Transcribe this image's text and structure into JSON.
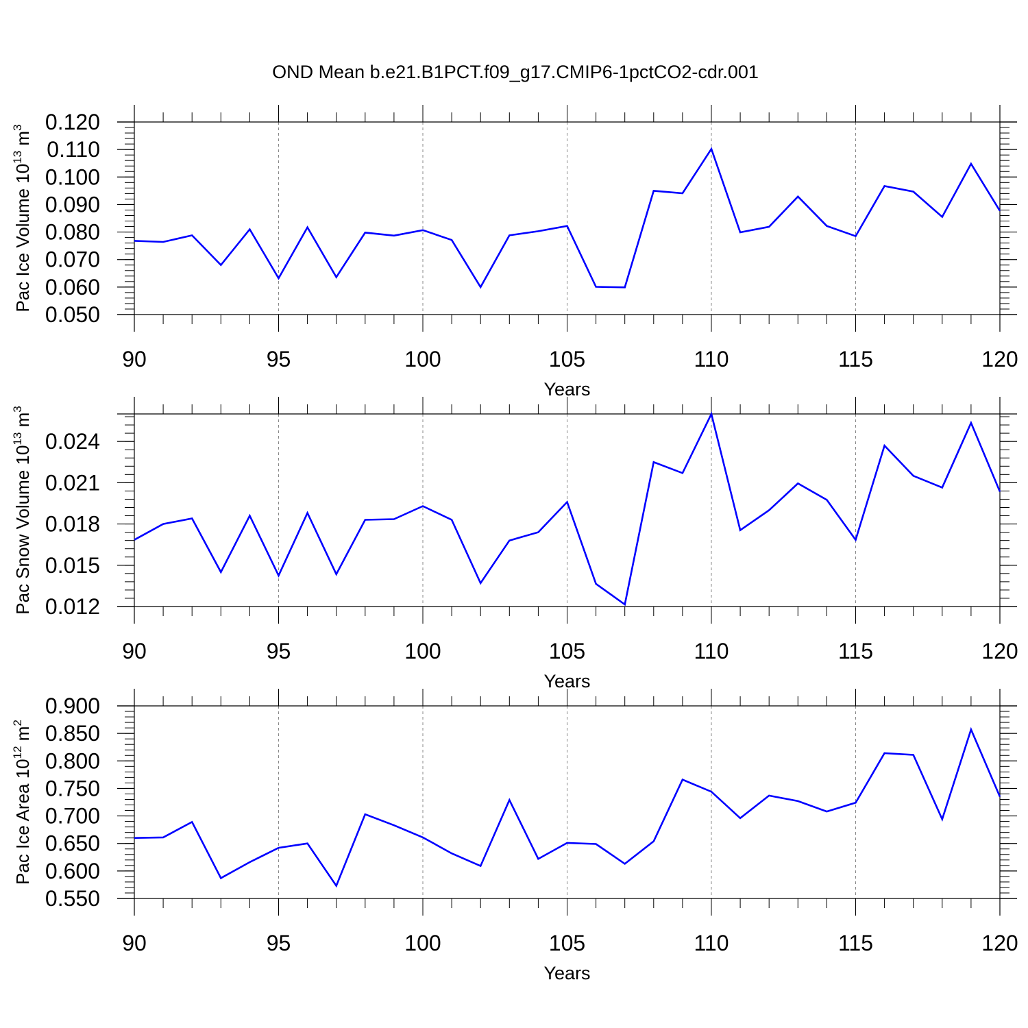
{
  "title": "OND Mean b.e21.B1PCT.f09_g17.CMIP6-1pctCO2-cdr.001",
  "colors": {
    "line": "#0000ff",
    "axis": "#000000",
    "grid": "#888888"
  },
  "chart_data": [
    {
      "type": "line",
      "ylabel": "Pac Ice Volume",
      "ylabel_unit": "10",
      "ylabel_exp": "13",
      "ylabel_unit_suffix": " m",
      "ylabel_unit_exp": "3",
      "xlabel": "Years",
      "xlim": [
        90,
        120
      ],
      "ylim": [
        0.05,
        0.12
      ],
      "x_ticks": [
        90,
        95,
        100,
        105,
        110,
        115,
        120
      ],
      "x_tick_labels": [
        "90",
        "95",
        "100",
        "105",
        "110",
        "115",
        "120"
      ],
      "y_ticks": [
        0.05,
        0.06,
        0.07,
        0.08,
        0.09,
        0.1,
        0.11,
        0.12
      ],
      "y_tick_labels": [
        "0.050",
        "0.060",
        "0.070",
        "0.080",
        "0.090",
        "0.100",
        "0.110",
        "0.120"
      ],
      "y_minor_step": 0.002,
      "grid_x": true,
      "series": [
        {
          "name": "Pac Ice Volume",
          "x": [
            90,
            91,
            92,
            93,
            94,
            95,
            96,
            97,
            98,
            99,
            100,
            101,
            102,
            103,
            104,
            105,
            106,
            107,
            108,
            109,
            110,
            111,
            112,
            113,
            114,
            115,
            116,
            117,
            118,
            119,
            120
          ],
          "values": [
            0.0768,
            0.0764,
            0.0788,
            0.068,
            0.081,
            0.0632,
            0.0817,
            0.0636,
            0.0798,
            0.0787,
            0.0807,
            0.0771,
            0.06,
            0.0788,
            0.0803,
            0.0822,
            0.0601,
            0.0599,
            0.095,
            0.0941,
            0.1102,
            0.0799,
            0.0819,
            0.0929,
            0.0822,
            0.0785,
            0.0967,
            0.0947,
            0.0855,
            0.1048,
            0.0877
          ]
        }
      ]
    },
    {
      "type": "line",
      "ylabel": "Pac Snow Volume",
      "ylabel_unit": "10",
      "ylabel_exp": "13",
      "ylabel_unit_suffix": " m",
      "ylabel_unit_exp": "3",
      "xlabel": "Years",
      "xlim": [
        90,
        120
      ],
      "ylim": [
        0.012,
        0.026
      ],
      "x_ticks": [
        90,
        95,
        100,
        105,
        110,
        115,
        120
      ],
      "x_tick_labels": [
        "90",
        "95",
        "100",
        "105",
        "110",
        "115",
        "120"
      ],
      "y_ticks": [
        0.012,
        0.015,
        0.018,
        0.021,
        0.024
      ],
      "y_tick_labels": [
        "0.012",
        "0.015",
        "0.018",
        "0.021",
        "0.024"
      ],
      "y_minor_step": 0.0006,
      "grid_x": true,
      "series": [
        {
          "name": "Pac Snow Volume",
          "x": [
            90,
            91,
            92,
            93,
            94,
            95,
            96,
            97,
            98,
            99,
            100,
            101,
            102,
            103,
            104,
            105,
            106,
            107,
            108,
            109,
            110,
            111,
            112,
            113,
            114,
            115,
            116,
            117,
            118,
            119,
            120
          ],
          "values": [
            0.01685,
            0.018,
            0.0184,
            0.0145,
            0.0186,
            0.01425,
            0.0188,
            0.01435,
            0.0183,
            0.01835,
            0.0193,
            0.0183,
            0.0137,
            0.0168,
            0.0174,
            0.0196,
            0.01365,
            0.01215,
            0.0225,
            0.0217,
            0.026,
            0.01755,
            0.019,
            0.02095,
            0.01975,
            0.01685,
            0.0237,
            0.0215,
            0.02065,
            0.02535,
            0.02035
          ]
        }
      ]
    },
    {
      "type": "line",
      "ylabel": "Pac Ice Area",
      "ylabel_unit": "10",
      "ylabel_exp": "12",
      "ylabel_unit_suffix": " m",
      "ylabel_unit_exp": "2",
      "xlabel": "Years",
      "xlim": [
        90,
        120
      ],
      "ylim": [
        0.55,
        0.9
      ],
      "x_ticks": [
        90,
        95,
        100,
        105,
        110,
        115,
        120
      ],
      "x_tick_labels": [
        "90",
        "95",
        "100",
        "105",
        "110",
        "115",
        "120"
      ],
      "y_ticks": [
        0.55,
        0.6,
        0.65,
        0.7,
        0.75,
        0.8,
        0.85,
        0.9
      ],
      "y_tick_labels": [
        "0.550",
        "0.600",
        "0.650",
        "0.700",
        "0.750",
        "0.800",
        "0.850",
        "0.900"
      ],
      "y_minor_step": 0.01,
      "grid_x": true,
      "series": [
        {
          "name": "Pac Ice Area",
          "x": [
            90,
            91,
            92,
            93,
            94,
            95,
            96,
            97,
            98,
            99,
            100,
            101,
            102,
            103,
            104,
            105,
            106,
            107,
            108,
            109,
            110,
            111,
            112,
            113,
            114,
            115,
            116,
            117,
            118,
            119,
            120
          ],
          "values": [
            0.66,
            0.661,
            0.689,
            0.587,
            0.616,
            0.642,
            0.65,
            0.573,
            0.703,
            0.683,
            0.661,
            0.632,
            0.609,
            0.729,
            0.622,
            0.651,
            0.649,
            0.613,
            0.654,
            0.766,
            0.744,
            0.696,
            0.737,
            0.727,
            0.708,
            0.724,
            0.814,
            0.811,
            0.694,
            0.857,
            0.735
          ]
        }
      ]
    }
  ]
}
